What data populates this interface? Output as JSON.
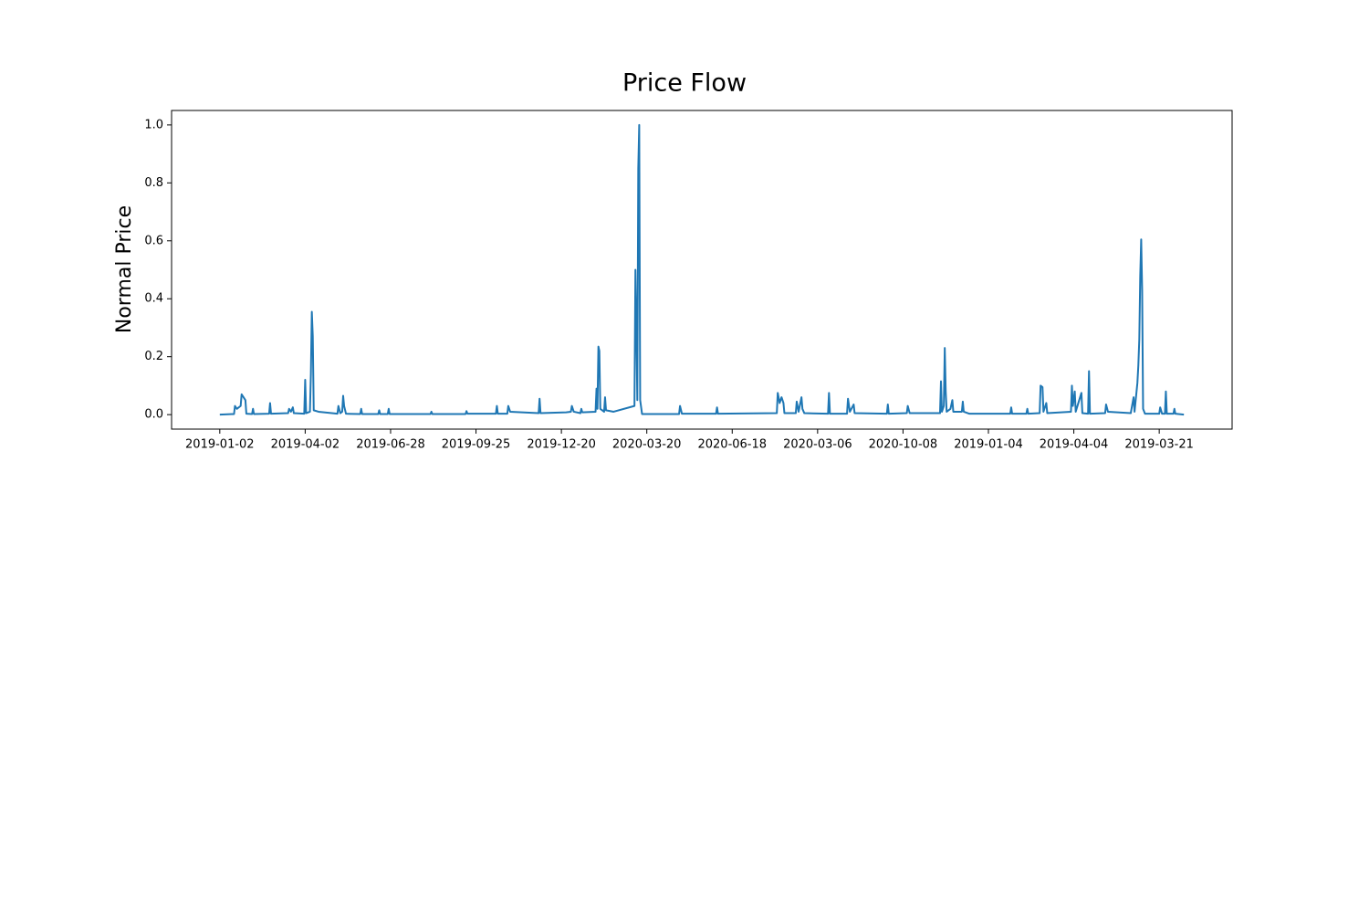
{
  "chart_data": {
    "type": "line",
    "title": "Price Flow",
    "y_label": "Normal Price",
    "color": "#1f77b4",
    "x": [
      0,
      15,
      16,
      18,
      22,
      23,
      25,
      27,
      28,
      34,
      35,
      36,
      52,
      53,
      54,
      72,
      73,
      75,
      77,
      78,
      89,
      90,
      91,
      95,
      96,
      97,
      98,
      99,
      104,
      124,
      125,
      127,
      129,
      130,
      131,
      133,
      148,
      149,
      150,
      167,
      168,
      169,
      177,
      178,
      179,
      222,
      223,
      224,
      259,
      260,
      261,
      291,
      292,
      293,
      303,
      304,
      306,
      336,
      337,
      338,
      365,
      370,
      371,
      373,
      380,
      381,
      382,
      396,
      397,
      398,
      399,
      400,
      401,
      405,
      406,
      407,
      415,
      437,
      438,
      439,
      440,
      441,
      442,
      443,
      445,
      484,
      485,
      487,
      523,
      524,
      525,
      587,
      588,
      590,
      592,
      594,
      595,
      607,
      608,
      610,
      613,
      614,
      616,
      641,
      642,
      643,
      661,
      662,
      664,
      668,
      669,
      703,
      704,
      705,
      724,
      725,
      727,
      759,
      760,
      761,
      763,
      764,
      765,
      766,
      770,
      772,
      773,
      782,
      783,
      784,
      790,
      833,
      834,
      835,
      850,
      851,
      852,
      864,
      865,
      867,
      868,
      871,
      872,
      897,
      898,
      899,
      901,
      902,
      908,
      909,
      915,
      916,
      917,
      933,
      934,
      936,
      960,
      963,
      964,
      967,
      968,
      969,
      970,
      971,
      972,
      973,
      975,
      990,
      991,
      993,
      996,
      997,
      998,
      1005,
      1006,
      1007,
      1016
    ],
    "values": [
      0,
      0.002,
      0.03,
      0.02,
      0.03,
      0.07,
      0.06,
      0.05,
      0.003,
      0.002,
      0.02,
      0.002,
      0.003,
      0.04,
      0.003,
      0.005,
      0.02,
      0.01,
      0.025,
      0.005,
      0.003,
      0.12,
      0.005,
      0.01,
      0.14,
      0.355,
      0.27,
      0.015,
      0.01,
      0.003,
      0.03,
      0.005,
      0.01,
      0.065,
      0.03,
      0.003,
      0.002,
      0.02,
      0.002,
      0.002,
      0.015,
      0.002,
      0.002,
      0.02,
      0.002,
      0.002,
      0.01,
      0.002,
      0.002,
      0.012,
      0.003,
      0.003,
      0.03,
      0.003,
      0.003,
      0.03,
      0.01,
      0.005,
      0.055,
      0.005,
      0.008,
      0.01,
      0.03,
      0.01,
      0.005,
      0.02,
      0.008,
      0.01,
      0.09,
      0.02,
      0.235,
      0.22,
      0.02,
      0.01,
      0.06,
      0.015,
      0.01,
      0.03,
      0.5,
      0.3,
      0.05,
      0.85,
      1.0,
      0.05,
      0.002,
      0.002,
      0.03,
      0.003,
      0.003,
      0.025,
      0.003,
      0.005,
      0.075,
      0.04,
      0.06,
      0.04,
      0.005,
      0.005,
      0.045,
      0.01,
      0.06,
      0.02,
      0.005,
      0.003,
      0.075,
      0.003,
      0.003,
      0.055,
      0.01,
      0.035,
      0.005,
      0.003,
      0.035,
      0.003,
      0.005,
      0.03,
      0.005,
      0.005,
      0.115,
      0.01,
      0.03,
      0.23,
      0.08,
      0.01,
      0.02,
      0.05,
      0.01,
      0.01,
      0.045,
      0.01,
      0.003,
      0.003,
      0.025,
      0.003,
      0.003,
      0.02,
      0.003,
      0.005,
      0.1,
      0.095,
      0.01,
      0.04,
      0.005,
      0.01,
      0.1,
      0.03,
      0.08,
      0.01,
      0.075,
      0.005,
      0.003,
      0.15,
      0.003,
      0.005,
      0.035,
      0.01,
      0.005,
      0.06,
      0.01,
      0.11,
      0.17,
      0.26,
      0.48,
      0.605,
      0.43,
      0.02,
      0.003,
      0.003,
      0.025,
      0.003,
      0.003,
      0.08,
      0.003,
      0.003,
      0.02,
      0.003,
      0
    ],
    "xlim": [
      -50.8,
      1066.8
    ],
    "xticks": [
      {
        "value": 0,
        "label": "2019-01-02"
      },
      {
        "value": 90,
        "label": "2019-04-02"
      },
      {
        "value": 180,
        "label": "2019-06-28"
      },
      {
        "value": 270,
        "label": "2019-09-25"
      },
      {
        "value": 360,
        "label": "2019-12-20"
      },
      {
        "value": 450,
        "label": "2020-03-20"
      },
      {
        "value": 540,
        "label": "2020-06-18"
      },
      {
        "value": 630,
        "label": "2020-03-06"
      },
      {
        "value": 720,
        "label": "2020-10-08"
      },
      {
        "value": 810,
        "label": "2019-01-04"
      },
      {
        "value": 900,
        "label": "2019-04-04"
      },
      {
        "value": 990,
        "label": "2019-03-21"
      }
    ],
    "ylim": [
      -0.05,
      1.05
    ],
    "yticks": [
      {
        "value": 0,
        "label": "0.0"
      },
      0.2,
      0.4,
      0.6,
      0.8,
      {
        "value": 1,
        "label": "1.0"
      }
    ]
  }
}
